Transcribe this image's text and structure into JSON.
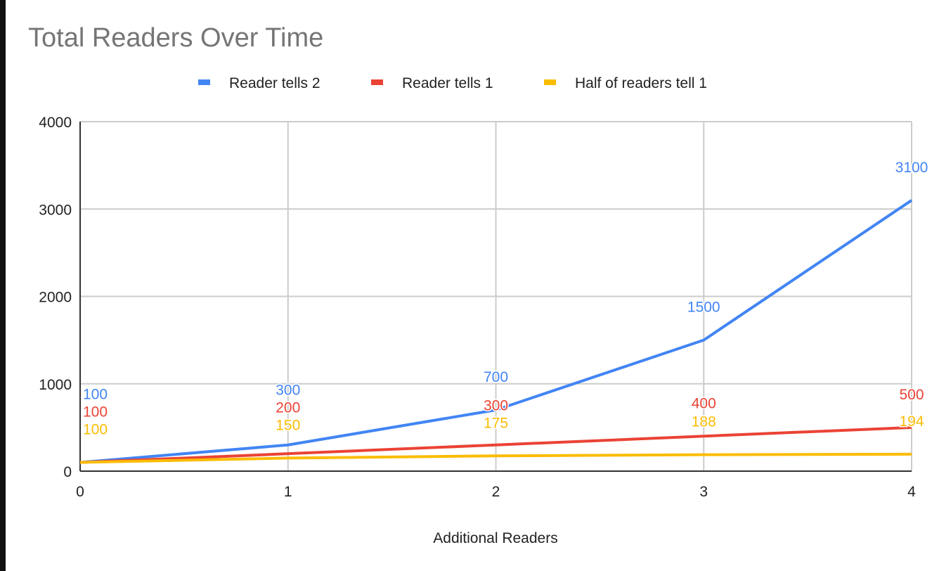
{
  "chart_data": {
    "type": "line",
    "title": "Total Readers Over Time",
    "xlabel": "Additional Readers",
    "ylabel": "",
    "x": [
      0,
      1,
      2,
      3,
      4
    ],
    "xlim": [
      0,
      4
    ],
    "ylim": [
      0,
      4000
    ],
    "yticks": [
      0,
      1000,
      2000,
      3000,
      4000
    ],
    "xticks": [
      0,
      1,
      2,
      3,
      4
    ],
    "grid": true,
    "legend_position": "top",
    "series": [
      {
        "name": "Reader tells 2",
        "color": "#4285f4",
        "values": [
          100,
          300,
          700,
          1500,
          3100
        ]
      },
      {
        "name": "Reader tells 1",
        "color": "#ea4335",
        "values": [
          100,
          200,
          300,
          400,
          500
        ]
      },
      {
        "name": "Half of readers tell 1",
        "color": "#fbbc04",
        "values": [
          100,
          150,
          175,
          188,
          194
        ]
      }
    ]
  }
}
